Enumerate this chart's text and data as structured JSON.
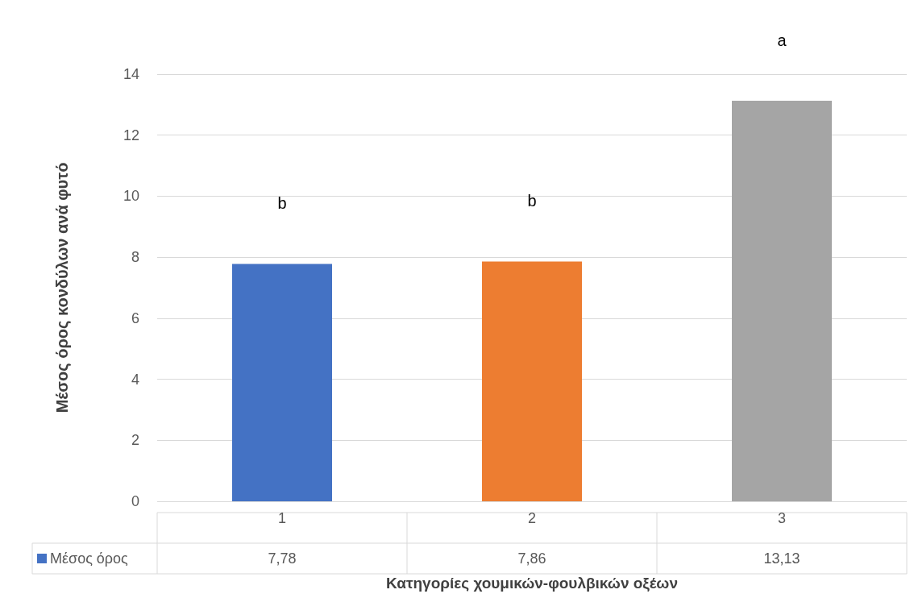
{
  "chart_data": {
    "type": "bar",
    "xlabel": "Κατηγορίες χουμικών-φουλβικών οξέων",
    "ylabel": "Μέσος όρος κονδύλων ανά φυτό",
    "categories": [
      "1",
      "2",
      "3"
    ],
    "series": [
      {
        "name": "Μέσος όρος",
        "color": "#4472c4",
        "colors": [
          "#4472c4",
          "#ed7d31",
          "#a5a5a5"
        ],
        "values": [
          7.78,
          7.86,
          13.13
        ],
        "value_labels": [
          "7,78",
          "7,86",
          "13,13"
        ]
      }
    ],
    "ylim": [
      0,
      14
    ],
    "yticks": [
      0,
      2,
      4,
      6,
      8,
      10,
      12,
      14
    ],
    "grid": "y",
    "legend": "bottom",
    "annotations": [
      "b",
      "b",
      "a"
    ]
  }
}
